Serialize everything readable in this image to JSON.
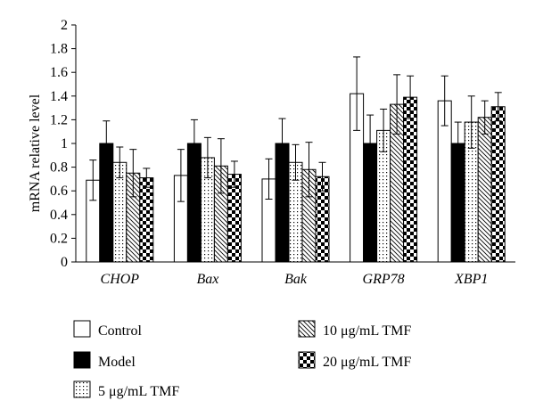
{
  "chart_data": {
    "type": "bar",
    "title": "",
    "xlabel": "",
    "ylabel": "mRNA relative level",
    "ylim": [
      0,
      2
    ],
    "yticks": [
      "0",
      "0.2",
      "0.4",
      "0.6",
      "0.8",
      "1",
      "1.2",
      "1.4",
      "1.6",
      "1.8",
      "2"
    ],
    "categories": [
      "CHOP",
      "Bax",
      "Bak",
      "GRP78",
      "XBP1"
    ],
    "series": [
      {
        "name": "Control",
        "pattern": "white",
        "values": [
          0.69,
          0.73,
          0.7,
          1.42,
          1.36
        ],
        "errors": [
          0.17,
          0.22,
          0.17,
          0.31,
          0.21
        ]
      },
      {
        "name": "Model",
        "pattern": "black",
        "values": [
          1.0,
          1.0,
          1.0,
          1.0,
          1.0
        ],
        "errors": [
          0.19,
          0.2,
          0.21,
          0.24,
          0.18
        ]
      },
      {
        "name": "5 μg/mL TMF",
        "pattern": "dots",
        "values": [
          0.84,
          0.88,
          0.84,
          1.11,
          1.18
        ],
        "errors": [
          0.13,
          0.17,
          0.15,
          0.18,
          0.22
        ]
      },
      {
        "name": "10 μg/mL TMF",
        "pattern": "hatch",
        "values": [
          0.75,
          0.81,
          0.78,
          1.33,
          1.22
        ],
        "errors": [
          0.2,
          0.23,
          0.23,
          0.25,
          0.14
        ]
      },
      {
        "name": "20 μg/mL TMF",
        "pattern": "checker",
        "values": [
          0.71,
          0.74,
          0.72,
          1.39,
          1.31
        ],
        "errors": [
          0.08,
          0.11,
          0.12,
          0.18,
          0.12
        ]
      }
    ],
    "legend_position": "bottom",
    "grid": false
  },
  "colors": {
    "axis": "#000000",
    "bar_fill_white": "#ffffff",
    "bar_fill_black": "#000000"
  }
}
